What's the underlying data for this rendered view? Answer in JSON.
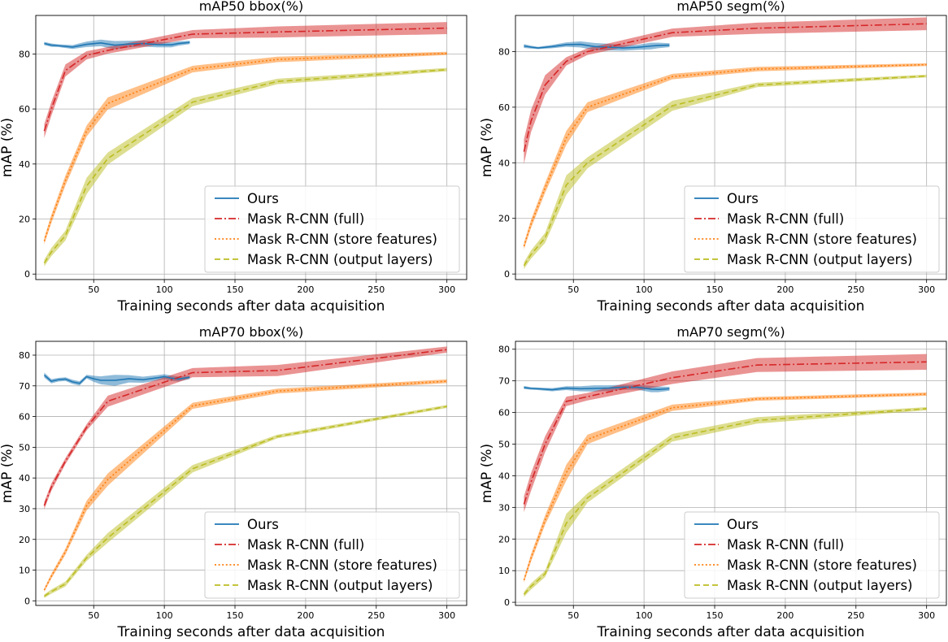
{
  "figure": {
    "legend_location": "lower-right",
    "grid": true,
    "series_styles": [
      {
        "name": "Ours",
        "color": "#1f77b4",
        "dash": "solid"
      },
      {
        "name": "Mask R-CNN (full)",
        "color": "#d62728",
        "dash": "dashdot"
      },
      {
        "name": "Mask R-CNN (store features)",
        "color": "#ff7f0e",
        "dash": "dotted"
      },
      {
        "name": "Mask R-CNN (output layers)",
        "color": "#bcbd22",
        "dash": "dashed"
      }
    ]
  },
  "chart_data": [
    {
      "type": "line",
      "title": "mAP50 bbox(%)",
      "xlabel": "Training seconds after data acquisition",
      "ylabel": "mAP (%)",
      "xlim": [
        9,
        314
      ],
      "ylim": [
        -2,
        94
      ],
      "xticks": [
        50,
        100,
        150,
        200,
        250,
        300
      ],
      "yticks": [
        0,
        20,
        40,
        60,
        80
      ],
      "series": [
        {
          "name": "Ours",
          "x": [
            15,
            20,
            25,
            35,
            45,
            55,
            65,
            75,
            85,
            95,
            105,
            110,
            118
          ],
          "y": [
            83.8,
            83.2,
            83.0,
            82.5,
            83.5,
            84.0,
            83.2,
            83.6,
            83.8,
            83.4,
            83.3,
            83.8,
            84.2
          ],
          "band": [
            0.6,
            0.6,
            0.5,
            0.7,
            1.0,
            1.2,
            1.5,
            1.2,
            1.1,
            1.0,
            0.9,
            0.8,
            0.6
          ]
        },
        {
          "name": "Mask R-CNN (full)",
          "x": [
            15,
            20,
            30,
            45,
            60,
            120,
            180,
            300
          ],
          "y": [
            52,
            60,
            74,
            79.5,
            81.3,
            87.2,
            88,
            89.4
          ],
          "band": [
            2.5,
            2.5,
            2.2,
            1.5,
            1.2,
            1.5,
            2.0,
            2.2
          ]
        },
        {
          "name": "Mask R-CNN (store features)",
          "x": [
            15,
            20,
            30,
            45,
            60,
            120,
            180,
            300
          ],
          "y": [
            12,
            20,
            34,
            52,
            62,
            74.5,
            78,
            80.2
          ],
          "band": [
            1.2,
            1.5,
            1.8,
            2.0,
            2.2,
            1.2,
            1.0,
            0.6
          ]
        },
        {
          "name": "Mask R-CNN (output layers)",
          "x": [
            15,
            20,
            30,
            45,
            60,
            120,
            180,
            300
          ],
          "y": [
            4,
            8,
            14,
            32,
            42,
            62.5,
            70,
            74.3
          ],
          "band": [
            1.2,
            1.5,
            1.8,
            3.0,
            2.2,
            1.5,
            1.0,
            0.6
          ]
        }
      ]
    },
    {
      "type": "line",
      "title": "mAP50 segm(%)",
      "xlabel": "Training seconds after data acquisition",
      "ylabel": "mAP (%)",
      "xlim": [
        9,
        314
      ],
      "ylim": [
        -2,
        93
      ],
      "xticks": [
        50,
        100,
        150,
        200,
        250,
        300
      ],
      "yticks": [
        0,
        20,
        40,
        60,
        80
      ],
      "series": [
        {
          "name": "Ours",
          "x": [
            15,
            20,
            25,
            35,
            45,
            55,
            65,
            75,
            85,
            95,
            105,
            110,
            118
          ],
          "y": [
            82.0,
            81.6,
            81.3,
            81.8,
            82.5,
            82.6,
            81.8,
            81.6,
            81.3,
            81.5,
            82.0,
            82.2,
            82.3
          ],
          "band": [
            0.7,
            0.5,
            0.4,
            0.6,
            0.8,
            1.1,
            1.3,
            1.2,
            1.0,
            0.9,
            1.2,
            1.0,
            0.7
          ]
        },
        {
          "name": "Mask R-CNN (full)",
          "x": [
            15,
            20,
            30,
            45,
            60,
            120,
            180,
            300
          ],
          "y": [
            44,
            55,
            68,
            76.5,
            80,
            86.8,
            88.4,
            90
          ],
          "band": [
            4.5,
            4.0,
            3.5,
            1.5,
            1.2,
            1.5,
            2.0,
            2.3
          ]
        },
        {
          "name": "Mask R-CNN (store features)",
          "x": [
            15,
            20,
            30,
            45,
            60,
            120,
            180,
            300
          ],
          "y": [
            10,
            18,
            31,
            49,
            60,
            71,
            73.7,
            75.3
          ],
          "band": [
            1.2,
            1.5,
            1.8,
            2.5,
            1.8,
            1.0,
            0.8,
            0.5
          ]
        },
        {
          "name": "Mask R-CNN (output layers)",
          "x": [
            15,
            20,
            30,
            45,
            60,
            120,
            180,
            300
          ],
          "y": [
            3,
            7,
            13,
            32,
            40,
            60.5,
            68,
            71.2
          ],
          "band": [
            1.2,
            1.5,
            1.8,
            3.5,
            2.0,
            1.8,
            0.8,
            0.5
          ]
        }
      ]
    },
    {
      "type": "line",
      "title": "mAP70 bbox(%)",
      "xlabel": "Training seconds after data acquisition",
      "ylabel": "mAP (%)",
      "xlim": [
        9,
        314
      ],
      "ylim": [
        -1.5,
        84.5
      ],
      "xticks": [
        50,
        100,
        150,
        200,
        250,
        300
      ],
      "yticks": [
        0,
        10,
        20,
        30,
        40,
        50,
        60,
        70,
        80
      ],
      "series": [
        {
          "name": "Ours",
          "x": [
            15,
            20,
            25,
            30,
            35,
            40,
            45,
            50,
            55,
            65,
            75,
            85,
            95,
            100,
            105,
            110,
            118
          ],
          "y": [
            73.5,
            71.5,
            72.0,
            72.2,
            71.3,
            70.8,
            73.0,
            72.3,
            71.8,
            71.8,
            72.3,
            72.0,
            72.6,
            73.0,
            72.5,
            72.2,
            72.8
          ],
          "band": [
            0.8,
            0.7,
            0.6,
            0.6,
            0.7,
            0.7,
            0.6,
            1.0,
            1.3,
            1.8,
            1.2,
            1.0,
            0.9,
            0.8,
            0.9,
            0.8,
            0.6
          ]
        },
        {
          "name": "Mask R-CNN (full)",
          "x": [
            15,
            20,
            30,
            45,
            60,
            120,
            180,
            300
          ],
          "y": [
            31,
            37,
            45.5,
            56.5,
            65,
            74.3,
            75,
            81.8
          ],
          "band": [
            1.2,
            1.2,
            1.0,
            1.0,
            1.8,
            1.5,
            1.8,
            1.0
          ]
        },
        {
          "name": "Mask R-CNN (store features)",
          "x": [
            15,
            20,
            30,
            45,
            60,
            120,
            180,
            300
          ],
          "y": [
            3.5,
            8,
            16,
            31,
            39.5,
            63.5,
            68.3,
            71.5
          ],
          "band": [
            0.6,
            0.8,
            1.0,
            1.6,
            2.0,
            1.0,
            0.8,
            0.6
          ]
        },
        {
          "name": "Mask R-CNN (output layers)",
          "x": [
            15,
            20,
            30,
            45,
            60,
            120,
            180,
            300
          ],
          "y": [
            1.5,
            3,
            5.5,
            14,
            20.5,
            43,
            53.5,
            63.3
          ],
          "band": [
            0.6,
            0.7,
            0.8,
            1.0,
            1.6,
            1.2,
            0.6,
            0.5
          ]
        }
      ]
    },
    {
      "type": "line",
      "title": "mAP70 segm(%)",
      "xlabel": "Training seconds after data acquisition",
      "ylabel": "mAP (%)",
      "xlim": [
        9,
        314
      ],
      "ylim": [
        -1,
        82.5
      ],
      "xticks": [
        50,
        100,
        150,
        200,
        250,
        300
      ],
      "yticks": [
        0,
        10,
        20,
        30,
        40,
        50,
        60,
        70,
        80
      ],
      "series": [
        {
          "name": "Ours",
          "x": [
            15,
            20,
            25,
            35,
            45,
            55,
            65,
            75,
            85,
            95,
            105,
            110,
            118
          ],
          "y": [
            67.9,
            67.6,
            67.5,
            67.2,
            67.7,
            67.5,
            67.6,
            67.7,
            68.0,
            68.0,
            67.4,
            67.3,
            67.5
          ],
          "band": [
            0.5,
            0.4,
            0.4,
            0.5,
            0.6,
            0.8,
            1.0,
            0.9,
            0.8,
            0.8,
            1.0,
            0.9,
            0.6
          ]
        },
        {
          "name": "Mask R-CNN (full)",
          "x": [
            15,
            20,
            30,
            45,
            60,
            120,
            180,
            300
          ],
          "y": [
            31,
            38,
            50,
            63.5,
            65,
            71,
            75,
            76
          ],
          "band": [
            2.5,
            2.8,
            2.5,
            1.5,
            1.2,
            2.0,
            2.2,
            2.5
          ]
        },
        {
          "name": "Mask R-CNN (store features)",
          "x": [
            15,
            20,
            30,
            45,
            60,
            120,
            180,
            300
          ],
          "y": [
            7,
            14,
            26,
            41,
            51.5,
            61.5,
            64.3,
            65.8
          ],
          "band": [
            0.8,
            1.2,
            1.5,
            2.5,
            1.5,
            1.0,
            0.6,
            0.5
          ]
        },
        {
          "name": "Mask R-CNN (output layers)",
          "x": [
            15,
            20,
            30,
            45,
            60,
            120,
            180,
            300
          ],
          "y": [
            2.5,
            5,
            9,
            25,
            33,
            52,
            57.5,
            61.2
          ],
          "band": [
            0.8,
            1.0,
            1.0,
            3.0,
            1.5,
            1.2,
            1.0,
            0.5
          ]
        }
      ]
    }
  ]
}
